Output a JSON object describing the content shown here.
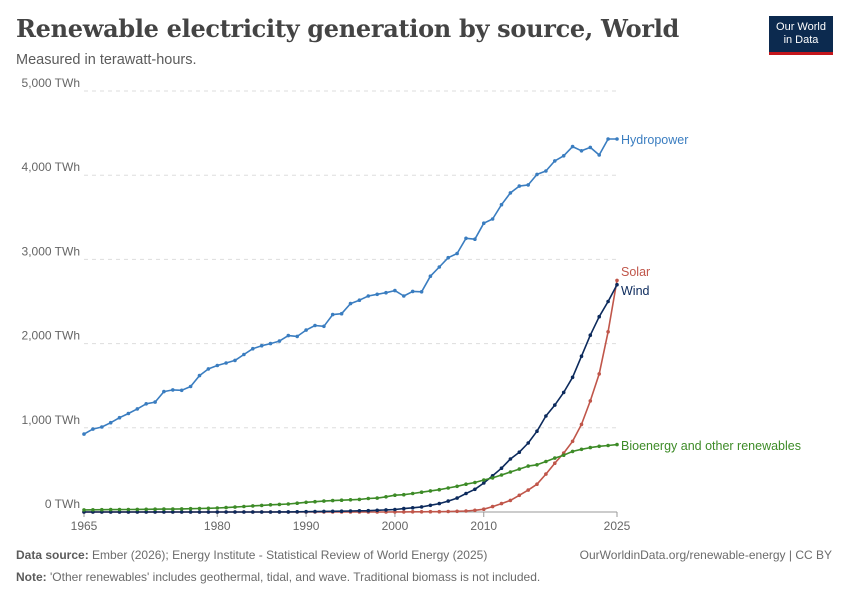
{
  "header": {
    "title": "Renewable electricity generation by source, World",
    "subtitle": "Measured in terawatt-hours.",
    "logo_line1": "Our World",
    "logo_line2": "in Data"
  },
  "footer": {
    "source_label": "Data source:",
    "source_text": "Ember (2026); Energy Institute - Statistical Review of World Energy (2025)",
    "url_text": "OurWorldinData.org/renewable-energy | CC BY",
    "note_label": "Note:",
    "note_text": "'Other renewables' includes geothermal, tidal, and wave. Traditional biomass is not included."
  },
  "colors": {
    "hydropower": "#3a7dc0",
    "solar": "#c0564a",
    "wind": "#0c2a5c",
    "bioenergy": "#3d8b27",
    "grid": "#dddddd",
    "axis_text": "#666666"
  },
  "chart_data": {
    "type": "line",
    "ylim": [
      0,
      5000
    ],
    "xlim": [
      1965,
      2025
    ],
    "y_ticks": [
      0,
      1000,
      2000,
      3000,
      4000,
      5000
    ],
    "y_tick_labels": [
      "0 TWh",
      "1,000 TWh",
      "2,000 TWh",
      "3,000 TWh",
      "4,000 TWh",
      "5,000 TWh"
    ],
    "x_ticks": [
      1965,
      1980,
      1990,
      2000,
      2010,
      2025
    ],
    "x_tick_labels": [
      "1965",
      "1980",
      "1990",
      "2000",
      "2010",
      "2025"
    ],
    "grid": true,
    "legend": "right, at line ends",
    "x": [
      1965,
      1966,
      1967,
      1968,
      1969,
      1970,
      1971,
      1972,
      1973,
      1974,
      1975,
      1976,
      1977,
      1978,
      1979,
      1980,
      1981,
      1982,
      1983,
      1984,
      1985,
      1986,
      1987,
      1988,
      1989,
      1990,
      1991,
      1992,
      1993,
      1994,
      1995,
      1996,
      1997,
      1998,
      1999,
      2000,
      2001,
      2002,
      2003,
      2004,
      2005,
      2006,
      2007,
      2008,
      2009,
      2010,
      2011,
      2012,
      2013,
      2014,
      2015,
      2016,
      2017,
      2018,
      2019,
      2020,
      2021,
      2022,
      2023,
      2024,
      2025
    ],
    "series": [
      {
        "name": "Hydropower",
        "color_key": "hydropower",
        "values": [
          925,
          985,
          1010,
          1060,
          1120,
          1170,
          1225,
          1285,
          1305,
          1430,
          1450,
          1445,
          1490,
          1620,
          1700,
          1740,
          1770,
          1800,
          1870,
          1940,
          1975,
          2000,
          2030,
          2095,
          2085,
          2160,
          2215,
          2205,
          2345,
          2355,
          2475,
          2515,
          2565,
          2585,
          2605,
          2630,
          2565,
          2620,
          2615,
          2800,
          2910,
          3020,
          3070,
          3250,
          3240,
          3430,
          3480,
          3650,
          3790,
          3870,
          3885,
          4010,
          4050,
          4170,
          4230,
          4340,
          4290,
          4330,
          4240,
          4430,
          4430
        ]
      },
      {
        "name": "Solar",
        "color_key": "solar",
        "values": [
          0,
          0,
          0,
          0,
          0,
          0,
          0,
          0,
          0,
          0,
          0,
          0,
          0,
          0,
          0,
          0,
          0,
          0,
          0,
          0,
          0,
          0,
          0,
          0,
          0,
          0,
          0,
          0,
          0,
          0,
          0,
          0,
          0,
          0,
          0,
          1,
          1,
          2,
          2,
          3,
          4,
          6,
          8,
          12,
          20,
          33,
          64,
          100,
          138,
          198,
          260,
          330,
          450,
          580,
          700,
          840,
          1040,
          1320,
          1640,
          2140,
          2750
        ]
      },
      {
        "name": "Wind",
        "color_key": "wind",
        "values": [
          0,
          0,
          0,
          0,
          0,
          0,
          0,
          0,
          0,
          0,
          0,
          0,
          0,
          0,
          0,
          0,
          0,
          0,
          0,
          0,
          0,
          0,
          1,
          1,
          2,
          4,
          5,
          7,
          8,
          10,
          12,
          14,
          16,
          20,
          25,
          30,
          40,
          50,
          60,
          80,
          100,
          130,
          165,
          220,
          270,
          345,
          430,
          520,
          630,
          710,
          820,
          960,
          1140,
          1270,
          1420,
          1600,
          1850,
          2100,
          2320,
          2500,
          2700
        ]
      },
      {
        "name": "Bioenergy and other renewables",
        "color_key": "bioenergy",
        "values": [
          25,
          26,
          27,
          28,
          29,
          30,
          31,
          32,
          33,
          34,
          35,
          37,
          39,
          42,
          44,
          48,
          52,
          58,
          65,
          72,
          78,
          85,
          90,
          95,
          105,
          115,
          122,
          130,
          135,
          140,
          145,
          150,
          160,
          165,
          180,
          200,
          205,
          220,
          235,
          250,
          265,
          285,
          305,
          330,
          350,
          380,
          405,
          440,
          475,
          510,
          545,
          560,
          600,
          640,
          675,
          720,
          745,
          765,
          780,
          790,
          800
        ]
      }
    ]
  }
}
